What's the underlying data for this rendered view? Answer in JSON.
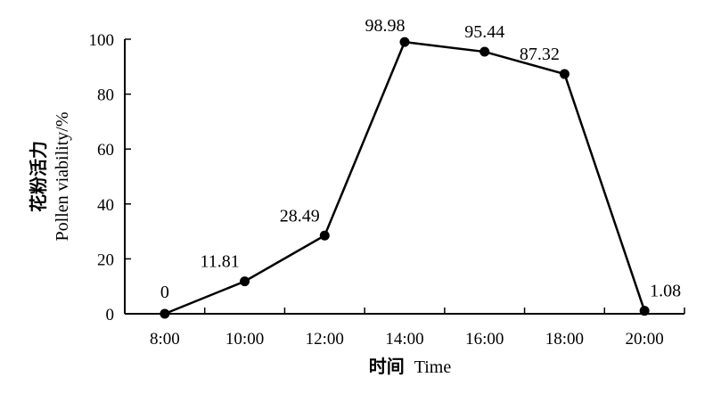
{
  "chart_data": {
    "type": "line",
    "categories": [
      "8:00",
      "10:00",
      "12:00",
      "14:00",
      "16:00",
      "18:00",
      "20:00"
    ],
    "series": [
      {
        "values": [
          0,
          11.81,
          28.49,
          98.98,
          95.44,
          87.32,
          1.08
        ],
        "labels": [
          "0",
          "11.81",
          "28.49",
          "98.98",
          "95.44",
          "87.32",
          "1.08"
        ]
      }
    ],
    "xlabel": {
      "cn": "时间",
      "en": "Time"
    },
    "ylabel": {
      "cn": "花粉活力",
      "en": "Pollen viability/%"
    },
    "ylim": [
      0,
      100
    ],
    "yticks": [
      0,
      20,
      40,
      60,
      80,
      100
    ],
    "grid": false,
    "legend": "none"
  }
}
